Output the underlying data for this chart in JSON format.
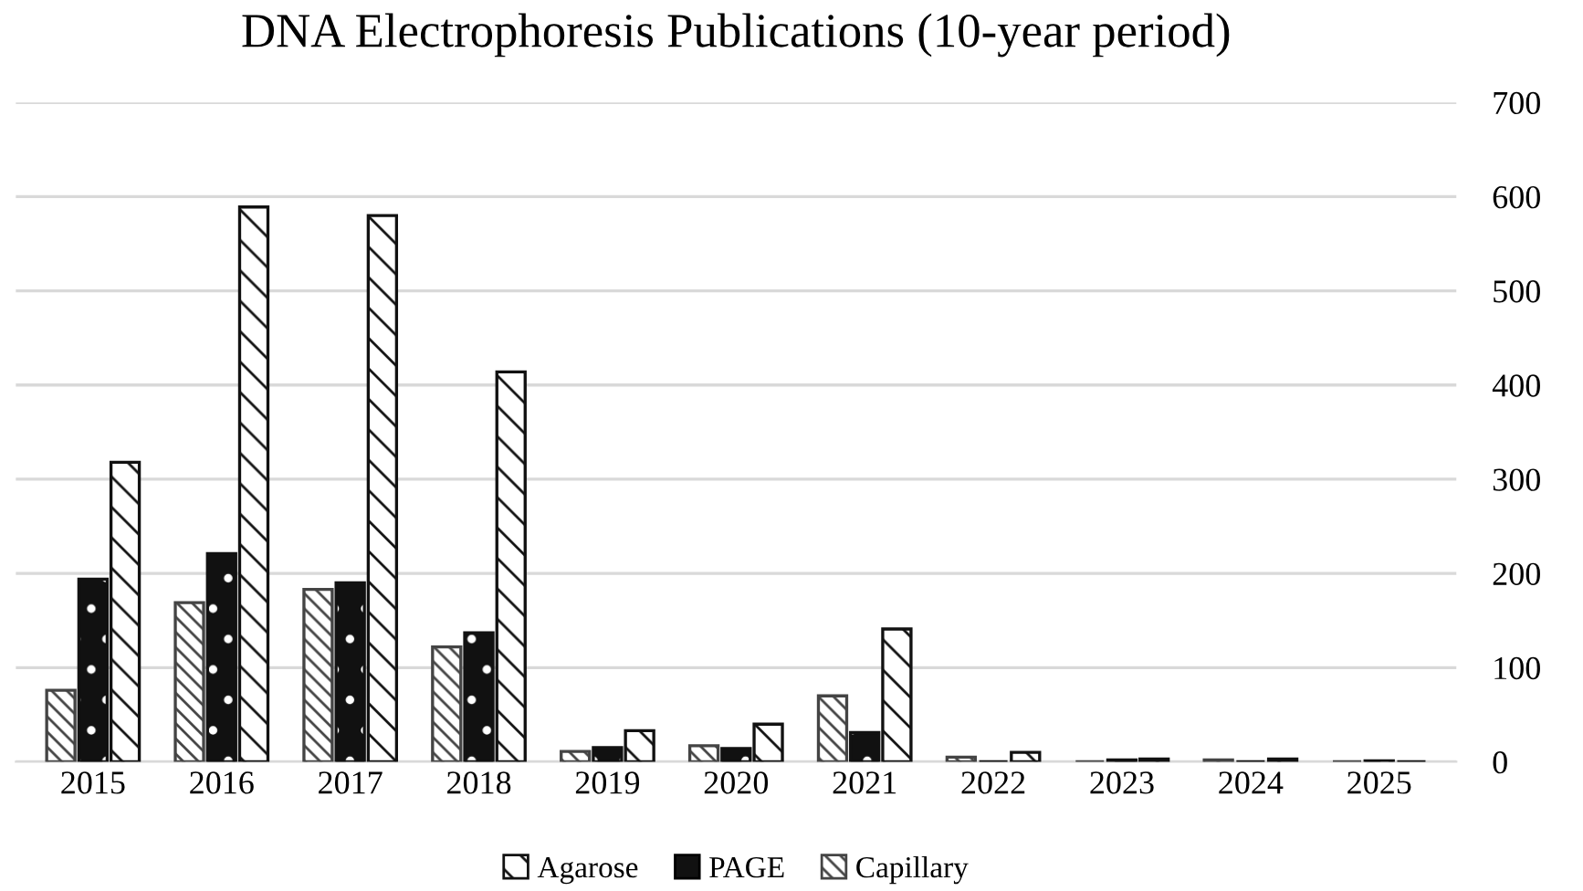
{
  "chart_data": {
    "type": "bar",
    "title": "DNA Electrophoresis Publications (10-year period)",
    "categories": [
      "2015",
      "2016",
      "2017",
      "2018",
      "2019",
      "2020",
      "2021",
      "2022",
      "2023",
      "2024",
      "2025"
    ],
    "series": [
      {
        "name": "Capillary",
        "color": "#444444",
        "values": [
          76,
          169,
          183,
          122,
          11,
          17,
          70,
          5,
          0,
          2,
          0
        ]
      },
      {
        "name": "PAGE",
        "color": "#111111",
        "values": [
          194,
          221,
          190,
          137,
          15,
          14,
          31,
          0,
          2,
          0,
          1
        ]
      },
      {
        "name": "Agarose",
        "color": "#111111",
        "values": [
          318,
          589,
          580,
          414,
          33,
          40,
          141,
          10,
          3,
          3,
          0
        ]
      }
    ],
    "ylim": [
      0,
      700
    ],
    "yticks": [
      0,
      100,
      200,
      300,
      400,
      500,
      600,
      700
    ],
    "grid": "y",
    "legend": "bottom"
  }
}
